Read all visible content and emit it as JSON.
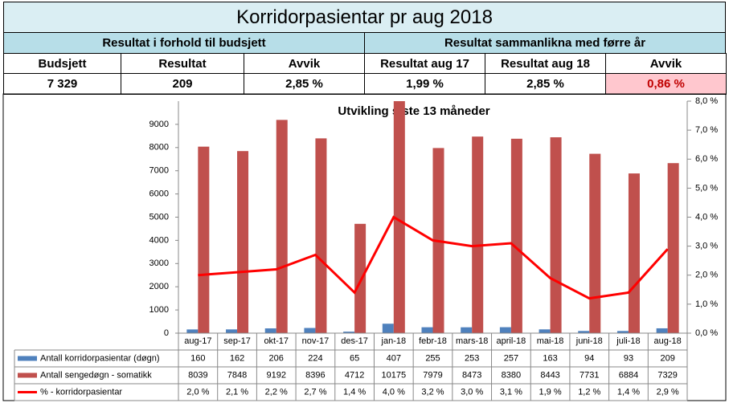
{
  "header": {
    "title": "Korridorpasientar  pr aug 2018",
    "groups": [
      "Resultat i forhold til budsjett",
      "Resultat sammanlikna med førre år"
    ],
    "columns": [
      "Budsjett",
      "Resultat",
      "Avvik",
      "Resultat aug 17",
      "Resultat aug 18",
      "Avvik"
    ],
    "values": [
      "7 329",
      "209",
      "2,85 %",
      "1,99 %",
      "2,85 %",
      "0,86 %"
    ]
  },
  "chart_data": {
    "type": "bar",
    "title": "Utvikling siste 13 måneder",
    "categories": [
      "aug-17",
      "sep-17",
      "okt-17",
      "nov-17",
      "des-17",
      "jan-18",
      "febr-18",
      "mars-18",
      "april-18",
      "mai-18",
      "juni-18",
      "juli-18",
      "aug-18"
    ],
    "series": [
      {
        "name": "Antall korridorpasientar (døgn)",
        "color": "#4f81bd",
        "values": [
          160,
          162,
          206,
          224,
          65,
          407,
          255,
          253,
          257,
          163,
          94,
          93,
          209
        ]
      },
      {
        "name": "Antall sengedøgn - somatikk",
        "color": "#c0504d",
        "values": [
          8039,
          7848,
          9192,
          8396,
          4712,
          10175,
          7979,
          8473,
          8380,
          8443,
          7731,
          6884,
          7329
        ]
      },
      {
        "name": "% - korridorpasientar",
        "color": "#ff0000",
        "type": "line",
        "axis": "y2",
        "values": [
          2.0,
          2.1,
          2.2,
          2.7,
          1.4,
          4.0,
          3.2,
          3.0,
          3.1,
          1.9,
          1.2,
          1.4,
          2.9
        ],
        "value_labels": [
          "2,0 %",
          "2,1 %",
          "2,2 %",
          "2,7 %",
          "1,4 %",
          "4,0 %",
          "3,2 %",
          "3,0 %",
          "3,1 %",
          "1,9 %",
          "1,2 %",
          "1,4 %",
          "2,9 %"
        ]
      }
    ],
    "ylim": [
      0,
      10000
    ],
    "yticks": [
      0,
      1000,
      2000,
      3000,
      4000,
      5000,
      6000,
      7000,
      8000,
      9000
    ],
    "y2lim": [
      0,
      8
    ],
    "y2ticks": [
      {
        "value": 0,
        "label": "0,0 %"
      },
      {
        "value": 1,
        "label": "1,0 %"
      },
      {
        "value": 2,
        "label": "2,0 %"
      },
      {
        "value": 3,
        "label": "3,0 %"
      },
      {
        "value": 4,
        "label": "4,0 %"
      },
      {
        "value": 5,
        "label": "5,0 %"
      },
      {
        "value": 6,
        "label": "6,0 %"
      },
      {
        "value": 7,
        "label": "7,0 %"
      },
      {
        "value": 8,
        "label": "8,0 %"
      }
    ]
  }
}
